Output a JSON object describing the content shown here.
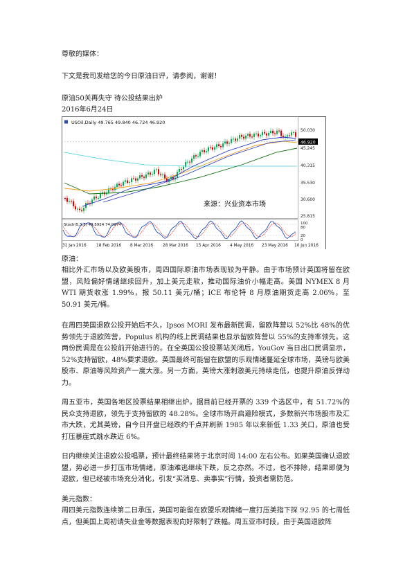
{
  "greeting": "尊敬的媒体：",
  "intro": "下文是我司发给您的今日原油日评，请参阅，谢谢！",
  "title": "原油50关再失守 待公投结果出炉",
  "date": "2016年6月24日",
  "chart": {
    "header": "USOil,Daily 49.765 49.840 46.724 46.920",
    "watermark": "来源：兴业资本市场",
    "price_labels": [
      "50.030",
      "46.920",
      "45.245",
      "40.315",
      "35.530",
      "30.600",
      "25.815"
    ],
    "current_price": "46.920",
    "stoch_header": "Stoch(5,3,3) 48.5924 74.0974",
    "stoch_levels": [
      "100",
      "80",
      "20",
      "0"
    ],
    "date_labels": [
      "31 Jan 2016",
      "18 Feb 2016",
      "8 Mar 2016",
      "28 Mar 2016",
      "15 Apr 2016",
      "4 May 2016",
      "23 May 2016",
      "10 Jun 2016"
    ],
    "colors": {
      "up": "#00b050",
      "down": "#e00000",
      "ma_fast": "#2030c0",
      "ma_mid": "#f0a020",
      "ma_slow": "#107010",
      "ma_cyan": "#40d0e0",
      "stoch_main": "#2050c0",
      "stoch_signal": "#e03030"
    }
  },
  "sections": [
    {
      "heading": "原油：",
      "paragraphs": [
        "相比外汇市场以及欧美股市，周四国际原油市场表现较为平静。由于市场预计英国将留在欧盟，风险偏好情绪继续回升，加上美元走软，推动国际油价小幅走高。美国 NYMEX 8 月 WTI 期货收涨 1.99%，报 50.11 美元/桶；ICE 布伦特 8 月原油期货走高 2.06%，至 50.91 美元/桶。",
        "在周四英国退欧公投开始后不久，Ipsos MORI 发布最新民调，留欧阵营以 52%比 48%的优势领先于退欧阵营，Populus 机构的线上民调结果也显示留欧阵营以 55%的支持率领先。这两份民调是在公投前开始进行的。在全英国公投投票站关闭后，YouGov 当日出口民调显示，52%支持留欧，48%要求退欧。英国最终可能留在欧盟的乐观情绪蔓延全球市场，英镑与欧美股市、原油等风险资产一度大涨。另一方面，英镑大涨刺激美元持续走低，也提升原油反弹动力。",
        "周五亚市，英国各地区投票结果相继出炉。据目前已经开票的 339 个选区中，有 51.72%的民众支持退欧，领先于支持留欧的 48.28%。全球市场开启避险模式，多数新兴市场股市及汇市大跌，尤其英镑，自今日开盘已经跌约千点并刷新 1985 年以来新低 1.33 关口，原油也受打压暴崖式跳水跌近 6%。",
        "日内继续关注退欧公投唱票，预计最终结果将于北京时间 14:00 左右公布。如果英国确认退欧盟，势必进一步打压市场情绪，原油难逃继续下跌，反之亦然。不过，也不排除，结果即便为退欧，但已经被市场充分消化，引发“买消息、卖事实”行情，投资者需防范。"
      ]
    },
    {
      "heading": "美元指数：",
      "paragraphs": [
        "周四美元指数连续第二日承压，英国可能留在欧盟乐观情绪一度打压美指下探 92.95 的七周低点，但美国上周初请失业金等数据表现向好限制了跌幅。周五亚市时段，由于英国退欧阵"
      ]
    }
  ]
}
